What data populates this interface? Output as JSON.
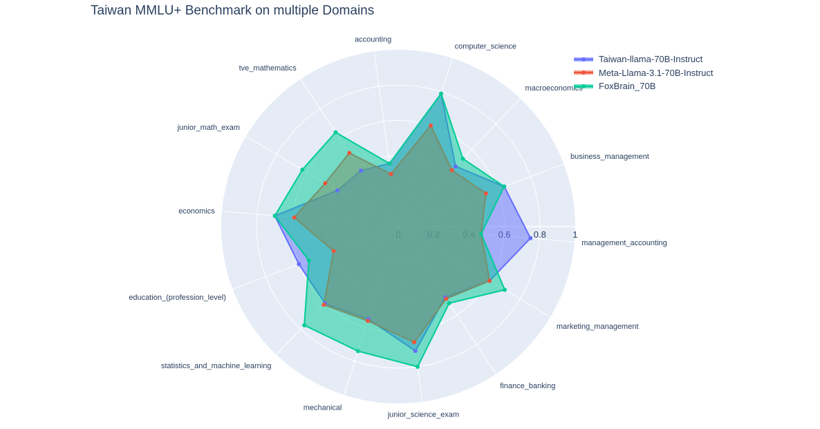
{
  "chart_data": {
    "type": "radar",
    "title": "Taiwan MMLU+ Benchmark on multiple Domains",
    "categories": [
      "management_accounting",
      "business_management",
      "macroeconomics",
      "computer_science",
      "accounting",
      "tve_mathematics",
      "junior_math_exam",
      "economics",
      "education_(profession_level)",
      "statistics_and_machine_learning",
      "mechanical",
      "junior_science_exam",
      "finance_banking",
      "marketing_management"
    ],
    "radial_ticks": [
      "0",
      "0.2",
      "0.4",
      "0.6",
      "0.8",
      "1"
    ],
    "rlim": [
      0,
      1
    ],
    "legend_position": "top-right",
    "series": [
      {
        "name": "Taiwan-llama-70B-Instruct",
        "color": "#636efa",
        "values": [
          0.75,
          0.64,
          0.47,
          0.79,
          0.36,
          0.38,
          0.4,
          0.7,
          0.6,
          0.6,
          0.55,
          0.71,
          0.48,
          0.6
        ]
      },
      {
        "name": "Meta-Llama-3.1-70B-Instruct",
        "color": "#ef553b",
        "values": [
          0.47,
          0.53,
          0.44,
          0.6,
          0.3,
          0.5,
          0.48,
          0.59,
          0.39,
          0.61,
          0.56,
          0.66,
          0.49,
          0.6
        ]
      },
      {
        "name": "FoxBrain_70B",
        "color": "#00cc96",
        "values": [
          0.47,
          0.64,
          0.53,
          0.79,
          0.36,
          0.64,
          0.63,
          0.7,
          0.54,
          0.77,
          0.74,
          0.8,
          0.52,
          0.7
        ]
      }
    ]
  }
}
